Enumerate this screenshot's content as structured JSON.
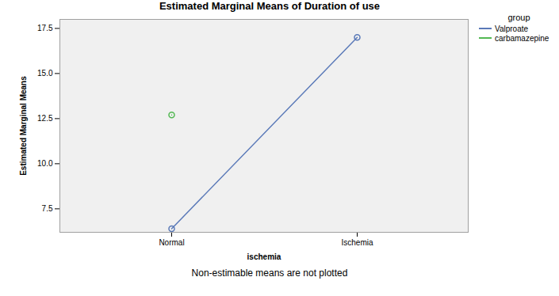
{
  "chart_data": {
    "type": "line",
    "title": "Estimated Marginal Means of Duration of use",
    "x_label": "ischemia",
    "y_label": "Estimated Marginal Means",
    "caption": "Non-estimable means are not plotted",
    "legend_title": "group",
    "legend": "top-right",
    "categories": [
      "Normal",
      "Ischemia"
    ],
    "series": [
      {
        "name": "Valproate",
        "color": "#5a79b8",
        "marker": "circle",
        "values": [
          6.4,
          17.0
        ]
      },
      {
        "name": "carbamazepine",
        "color": "#52b852",
        "marker": "circle",
        "values": [
          12.7,
          null
        ]
      }
    ],
    "ylim": [
      6.2,
      18.0
    ],
    "yticks": [
      7.5,
      {
        "value": 10,
        "label": "10.0"
      },
      12.5,
      {
        "value": 15,
        "label": "15.0"
      },
      17.5
    ],
    "grid": false
  }
}
